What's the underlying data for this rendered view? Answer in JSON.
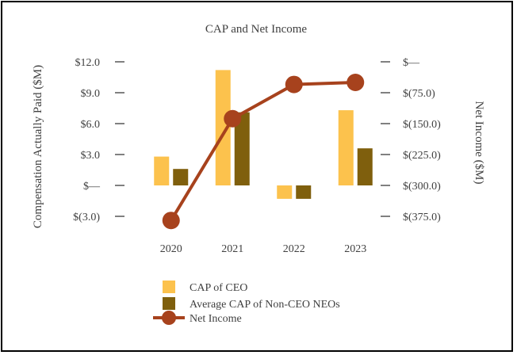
{
  "chart_data": {
    "type": "bar",
    "title": "CAP and Net Income",
    "categories": [
      "2020",
      "2021",
      "2022",
      "2023"
    ],
    "series": [
      {
        "name": "CAP of CEO",
        "type": "bar",
        "axis": "left",
        "color": "#FCC24D",
        "values": [
          2.8,
          11.2,
          -1.3,
          7.3
        ]
      },
      {
        "name": "Average CAP of Non-CEO NEOs",
        "type": "bar",
        "axis": "left",
        "color": "#7F5F0D",
        "values": [
          1.6,
          7.1,
          -1.3,
          3.6
        ]
      },
      {
        "name": "Net Income",
        "type": "line",
        "axis": "right",
        "color": "#A7421D",
        "values": [
          -385,
          -138,
          -55,
          -50
        ]
      }
    ],
    "ylabel": "Compensation Actually Paid ($M)",
    "ylim": [
      -3,
      12
    ],
    "yticks": [
      12,
      9,
      6,
      3,
      0,
      -3
    ],
    "ytick_labels": [
      "$12.0",
      "$9.0",
      "$6.0",
      "$3.0",
      "$—",
      "$(3.0)"
    ],
    "y2label": "Net Income ($M)",
    "y2lim": [
      -375,
      0
    ],
    "y2ticks": [
      0,
      -75,
      -150,
      -225,
      -300,
      -375
    ],
    "y2tick_labels": [
      "$—",
      "$(75.0)",
      "$(150.0)",
      "$(225.0)",
      "$(300.0)",
      "$(375.0)"
    ],
    "legend_position": "bottom",
    "legend": [
      "CAP of CEO",
      "Average CAP of Non-CEO NEOs",
      "Net Income"
    ],
    "grid": false
  }
}
